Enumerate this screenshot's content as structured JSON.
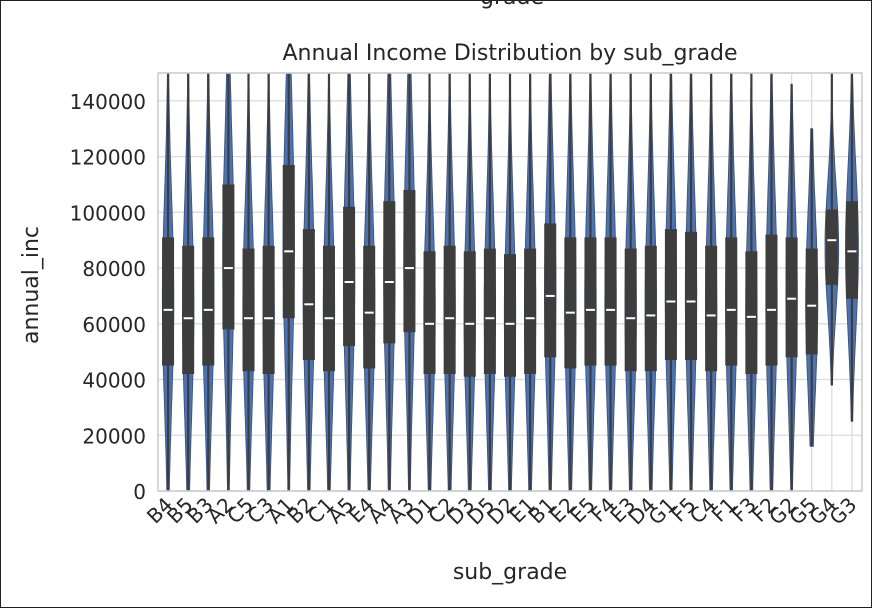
{
  "chart_data": {
    "type": "violin",
    "suptitle": "grade",
    "title": "Annual Income Distribution by sub_grade",
    "xlabel": "sub_grade",
    "ylabel": "annual_inc",
    "ylim": [
      0,
      150000
    ],
    "yticks": [
      0,
      20000,
      40000,
      60000,
      80000,
      100000,
      120000,
      140000
    ],
    "grid": true,
    "violin_color": "#4c72b0",
    "box_color": "#3d3d3d",
    "categories": [
      "B4",
      "B5",
      "B3",
      "A2",
      "C5",
      "C3",
      "A1",
      "B2",
      "C1",
      "A5",
      "E4",
      "A4",
      "A3",
      "D1",
      "C2",
      "D3",
      "D5",
      "D2",
      "E1",
      "B1",
      "E2",
      "E5",
      "F4",
      "E3",
      "D4",
      "G1",
      "F5",
      "C4",
      "F1",
      "F3",
      "F2",
      "G2",
      "G5",
      "G4",
      "G3"
    ],
    "violins": [
      {
        "q1": 45000,
        "median": 65000,
        "q3": 91000,
        "whisker_low": 0,
        "whisker_high": 150000,
        "max_width": 0.3
      },
      {
        "q1": 42000,
        "median": 62000,
        "q3": 88000,
        "whisker_low": 0,
        "whisker_high": 150000,
        "max_width": 0.3
      },
      {
        "q1": 45000,
        "median": 65000,
        "q3": 91000,
        "whisker_low": 0,
        "whisker_high": 150000,
        "max_width": 0.3
      },
      {
        "q1": 58000,
        "median": 80000,
        "q3": 110000,
        "whisker_low": 0,
        "whisker_high": 150000,
        "max_width": 0.3
      },
      {
        "q1": 43000,
        "median": 62000,
        "q3": 87000,
        "whisker_low": 0,
        "whisker_high": 150000,
        "max_width": 0.3
      },
      {
        "q1": 42000,
        "median": 62000,
        "q3": 88000,
        "whisker_low": 0,
        "whisker_high": 150000,
        "max_width": 0.3
      },
      {
        "q1": 62000,
        "median": 86000,
        "q3": 117000,
        "whisker_low": 0,
        "whisker_high": 150000,
        "max_width": 0.3
      },
      {
        "q1": 47000,
        "median": 67000,
        "q3": 94000,
        "whisker_low": 0,
        "whisker_high": 150000,
        "max_width": 0.3
      },
      {
        "q1": 43000,
        "median": 62000,
        "q3": 88000,
        "whisker_low": 0,
        "whisker_high": 150000,
        "max_width": 0.3
      },
      {
        "q1": 52000,
        "median": 75000,
        "q3": 102000,
        "whisker_low": 0,
        "whisker_high": 150000,
        "max_width": 0.3
      },
      {
        "q1": 44000,
        "median": 64000,
        "q3": 88000,
        "whisker_low": 0,
        "whisker_high": 150000,
        "max_width": 0.3
      },
      {
        "q1": 53000,
        "median": 75000,
        "q3": 104000,
        "whisker_low": 0,
        "whisker_high": 150000,
        "max_width": 0.3
      },
      {
        "q1": 57000,
        "median": 80000,
        "q3": 108000,
        "whisker_low": 0,
        "whisker_high": 150000,
        "max_width": 0.3
      },
      {
        "q1": 42000,
        "median": 60000,
        "q3": 86000,
        "whisker_low": 0,
        "whisker_high": 150000,
        "max_width": 0.3
      },
      {
        "q1": 42000,
        "median": 62000,
        "q3": 88000,
        "whisker_low": 0,
        "whisker_high": 150000,
        "max_width": 0.3
      },
      {
        "q1": 41000,
        "median": 60000,
        "q3": 86000,
        "whisker_low": 0,
        "whisker_high": 150000,
        "max_width": 0.3
      },
      {
        "q1": 42000,
        "median": 62000,
        "q3": 87000,
        "whisker_low": 0,
        "whisker_high": 150000,
        "max_width": 0.3
      },
      {
        "q1": 41000,
        "median": 60000,
        "q3": 85000,
        "whisker_low": 0,
        "whisker_high": 150000,
        "max_width": 0.3
      },
      {
        "q1": 42000,
        "median": 62000,
        "q3": 87000,
        "whisker_low": 0,
        "whisker_high": 150000,
        "max_width": 0.3
      },
      {
        "q1": 48000,
        "median": 70000,
        "q3": 96000,
        "whisker_low": 0,
        "whisker_high": 150000,
        "max_width": 0.3
      },
      {
        "q1": 44000,
        "median": 64000,
        "q3": 91000,
        "whisker_low": 0,
        "whisker_high": 150000,
        "max_width": 0.3
      },
      {
        "q1": 45000,
        "median": 65000,
        "q3": 91000,
        "whisker_low": 0,
        "whisker_high": 150000,
        "max_width": 0.3
      },
      {
        "q1": 45000,
        "median": 65000,
        "q3": 91000,
        "whisker_low": 0,
        "whisker_high": 150000,
        "max_width": 0.3
      },
      {
        "q1": 43000,
        "median": 62000,
        "q3": 87000,
        "whisker_low": 0,
        "whisker_high": 150000,
        "max_width": 0.3
      },
      {
        "q1": 43000,
        "median": 63000,
        "q3": 88000,
        "whisker_low": 0,
        "whisker_high": 150000,
        "max_width": 0.3
      },
      {
        "q1": 47000,
        "median": 68000,
        "q3": 94000,
        "whisker_low": 0,
        "whisker_high": 150000,
        "max_width": 0.3
      },
      {
        "q1": 47000,
        "median": 68000,
        "q3": 93000,
        "whisker_low": 0,
        "whisker_high": 150000,
        "max_width": 0.3
      },
      {
        "q1": 43000,
        "median": 63000,
        "q3": 88000,
        "whisker_low": 0,
        "whisker_high": 150000,
        "max_width": 0.3
      },
      {
        "q1": 45000,
        "median": 65000,
        "q3": 91000,
        "whisker_low": 0,
        "whisker_high": 150000,
        "max_width": 0.3
      },
      {
        "q1": 42000,
        "median": 62500,
        "q3": 86000,
        "whisker_low": 0,
        "whisker_high": 150000,
        "max_width": 0.3
      },
      {
        "q1": 45000,
        "median": 65000,
        "q3": 92000,
        "whisker_low": 0,
        "whisker_high": 150000,
        "max_width": 0.3
      },
      {
        "q1": 48000,
        "median": 69000,
        "q3": 91000,
        "whisker_low": 0,
        "whisker_high": 146000,
        "max_width": 0.3
      },
      {
        "q1": 49000,
        "median": 66500,
        "q3": 87000,
        "whisker_low": 16000,
        "whisker_high": 130000,
        "max_width": 0.32
      },
      {
        "q1": 74000,
        "median": 90000,
        "q3": 101000,
        "whisker_low": 38000,
        "whisker_high": 150000,
        "max_width": 0.36
      },
      {
        "q1": 69000,
        "median": 86000,
        "q3": 104000,
        "whisker_low": 25000,
        "whisker_high": 150000,
        "max_width": 0.34
      }
    ]
  }
}
